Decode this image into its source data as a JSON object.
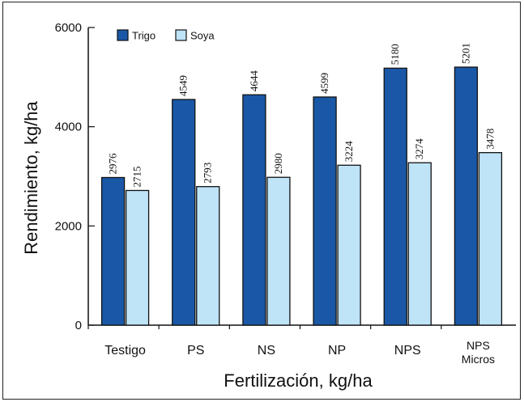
{
  "chart_data": {
    "type": "bar",
    "title": "",
    "xlabel": "Fertilización, kg/ha",
    "ylabel": "Rendimiento, kg/ha",
    "ylim": [
      0,
      6000
    ],
    "yticks": [
      "0",
      "2000",
      "4000",
      "6000"
    ],
    "categories": [
      "Testigo",
      "PS",
      "NS",
      "NP",
      "NPS",
      "NPS Micros"
    ],
    "series": [
      {
        "name": "Trigo",
        "color": "#1a58a7",
        "values": [
          2976,
          4549,
          4644,
          4599,
          5180,
          5201
        ],
        "labels": [
          "2976",
          "4549",
          "4644",
          "4599",
          "5180",
          "5201"
        ]
      },
      {
        "name": "Soya",
        "color": "#bfe3f7",
        "values": [
          2715,
          2793,
          2980,
          3224,
          3274,
          3478
        ],
        "labels": [
          "2715",
          "2793",
          "2980",
          "3224",
          "3274",
          "3478"
        ]
      }
    ],
    "legend": "top-left",
    "grid": false
  }
}
